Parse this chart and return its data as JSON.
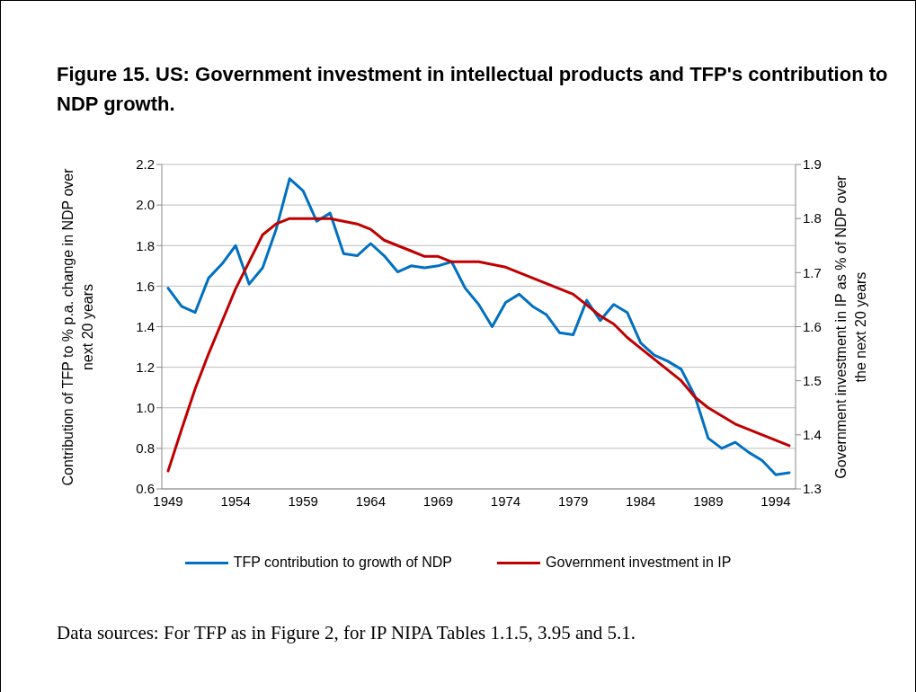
{
  "chart_data": {
    "type": "line",
    "title": "Figure 15. US: Government investment in intellectual products and TFP's contribution to NDP growth.",
    "ylabel": "Contribution of TFP to % p.a. change in NDP over next 20 years",
    "y2label": "Government investment in IP as % of NDP over the next 20 years",
    "annotations": [
      "Data sources: For TFP as in Figure 2, for IP NIPA Tables 1.1.5, 3.95 and 5.1."
    ],
    "categories": [
      "1949",
      null,
      null,
      null,
      null,
      "1954",
      null,
      null,
      null,
      null,
      "1959",
      null,
      null,
      null,
      null,
      "1964",
      null,
      null,
      null,
      null,
      "1969",
      null,
      null,
      null,
      null,
      "1974",
      null,
      null,
      null,
      null,
      "1979",
      null,
      null,
      null,
      null,
      "1984",
      null,
      null,
      null,
      null,
      "1989",
      null,
      null,
      null,
      null,
      "1994",
      null
    ],
    "series": [
      {
        "name": "TFP contribution to growth of NDP",
        "color": "#0070c0",
        "values": [
          1.59,
          1.5,
          1.47,
          1.64,
          1.71,
          1.8,
          1.61,
          1.69,
          1.88,
          2.13,
          2.07,
          1.92,
          1.96,
          1.76,
          1.75,
          1.81,
          1.75,
          1.67,
          1.7,
          1.69,
          1.7,
          1.72,
          1.59,
          1.51,
          1.4,
          1.52,
          1.56,
          1.5,
          1.46,
          1.37,
          1.36,
          1.53,
          1.43,
          1.51,
          1.47,
          1.32,
          1.26,
          1.23,
          1.19,
          1.06,
          0.85,
          0.8,
          0.83,
          0.78,
          0.74,
          0.67,
          0.68
        ]
      },
      {
        "name": "Government investment in IP",
        "color": "#c00000",
        "axis": "y2",
        "values": [
          1.333,
          1.41,
          1.485,
          1.55,
          1.61,
          1.67,
          1.72,
          1.77,
          1.79,
          1.8,
          1.8,
          1.8,
          1.8,
          1.795,
          1.79,
          1.78,
          1.76,
          1.75,
          1.74,
          1.73,
          1.73,
          1.72,
          1.72,
          1.72,
          1.715,
          1.71,
          1.7,
          1.69,
          1.68,
          1.67,
          1.66,
          1.64,
          1.62,
          1.605,
          1.58,
          1.56,
          1.54,
          1.52,
          1.5,
          1.47,
          1.45,
          1.435,
          1.42,
          1.41,
          1.4,
          1.39,
          1.38
        ]
      }
    ],
    "ylim": [
      0.6,
      2.2
    ],
    "yticks": [
      0.6,
      0.8,
      {
        "value": 1,
        "label": "1.0"
      },
      1.2,
      1.4,
      1.6,
      1.8,
      {
        "value": 2,
        "label": "2.0"
      },
      2.2
    ],
    "y2lim": [
      1.3,
      1.9
    ],
    "y2ticks": [
      1.3,
      1.4,
      1.5,
      1.6,
      1.7,
      1.8,
      1.9
    ],
    "grid": "y",
    "legend": "bottom",
    "marker": "none",
    "line_style": "solid"
  }
}
